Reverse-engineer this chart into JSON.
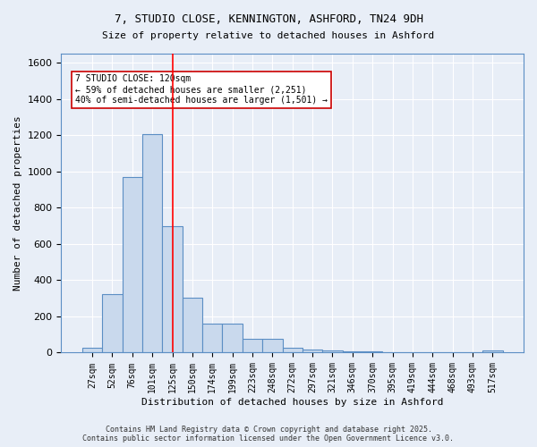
{
  "title_line1": "7, STUDIO CLOSE, KENNINGTON, ASHFORD, TN24 9DH",
  "title_line2": "Size of property relative to detached houses in Ashford",
  "xlabel": "Distribution of detached houses by size in Ashford",
  "ylabel": "Number of detached properties",
  "bin_labels": [
    "27sqm",
    "52sqm",
    "76sqm",
    "101sqm",
    "125sqm",
    "150sqm",
    "174sqm",
    "199sqm",
    "223sqm",
    "248sqm",
    "272sqm",
    "297sqm",
    "321sqm",
    "346sqm",
    "370sqm",
    "395sqm",
    "419sqm",
    "444sqm",
    "468sqm",
    "493sqm",
    "517sqm"
  ],
  "bar_values": [
    25,
    325,
    970,
    1205,
    700,
    305,
    160,
    160,
    75,
    75,
    25,
    15,
    10,
    5,
    5,
    3,
    3,
    3,
    3,
    3,
    10
  ],
  "bar_color": "#c9d9ed",
  "bar_edge_color": "#5b8ec4",
  "background_color": "#e8eef7",
  "grid_color": "#ffffff",
  "red_line_x": 4,
  "annotation_title": "7 STUDIO CLOSE: 120sqm",
  "annotation_line1": "← 59% of detached houses are smaller (2,251)",
  "annotation_line2": "40% of semi-detached houses are larger (1,501) →",
  "annotation_box_color": "#ffffff",
  "annotation_box_edge": "#cc0000",
  "ylim": [
    0,
    1650
  ],
  "yticks": [
    0,
    200,
    400,
    600,
    800,
    1000,
    1200,
    1400,
    1600
  ],
  "copyright_line1": "Contains HM Land Registry data © Crown copyright and database right 2025.",
  "copyright_line2": "Contains public sector information licensed under the Open Government Licence v3.0."
}
